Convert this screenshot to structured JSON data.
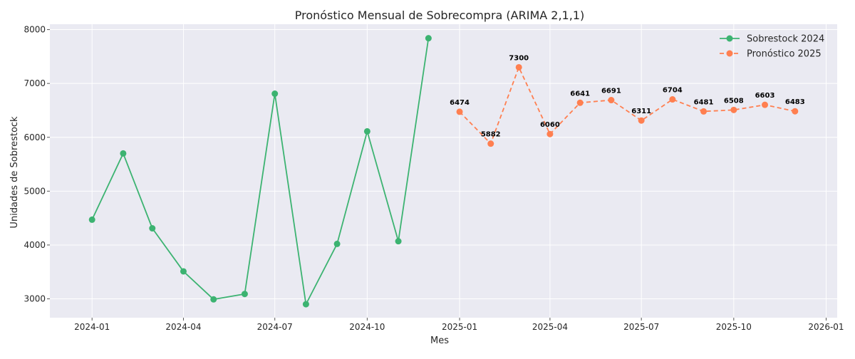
{
  "chart_data": {
    "type": "line",
    "title": "Pronóstico Mensual de Sobrecompra (ARIMA 2,1,1)",
    "xlabel": "Mes",
    "ylabel": "Unidades de Sobrestock",
    "ylim": [
      2650,
      8100
    ],
    "xlim": [
      "2023-11-20",
      "2026-01-12"
    ],
    "x_ticks": [
      "2024-01",
      "2024-04",
      "2024-07",
      "2024-10",
      "2025-01",
      "2025-04",
      "2025-07",
      "2025-10",
      "2026-01"
    ],
    "y_ticks": [
      3000,
      4000,
      5000,
      6000,
      7000,
      8000
    ],
    "grid": true,
    "legend_position": "top-right",
    "background": "#eaeaf2",
    "series": [
      {
        "name": "Sobrestock 2024",
        "color": "#3cb371",
        "line_style": "solid",
        "marker": "circle",
        "x": [
          "2024-01-01",
          "2024-02-01",
          "2024-03-01",
          "2024-04-01",
          "2024-05-01",
          "2024-06-01",
          "2024-07-01",
          "2024-08-01",
          "2024-09-01",
          "2024-10-01",
          "2024-11-01",
          "2024-12-01"
        ],
        "values": [
          4470,
          5700,
          4310,
          3510,
          2990,
          3090,
          6810,
          2900,
          4020,
          6110,
          4070,
          7840
        ]
      },
      {
        "name": "Pronóstico 2025",
        "color": "#ff7f50",
        "line_style": "dashed",
        "marker": "circle",
        "x": [
          "2025-01-01",
          "2025-02-01",
          "2025-03-01",
          "2025-04-01",
          "2025-05-01",
          "2025-06-01",
          "2025-07-01",
          "2025-08-01",
          "2025-09-01",
          "2025-10-01",
          "2025-11-01",
          "2025-12-01"
        ],
        "values": [
          6474,
          5882,
          7300,
          6060,
          6641,
          6691,
          6311,
          6704,
          6481,
          6508,
          6603,
          6483
        ],
        "data_labels": [
          "6474",
          "5882",
          "7300",
          "6060",
          "6641",
          "6691",
          "6311",
          "6704",
          "6481",
          "6508",
          "6603",
          "6483"
        ]
      }
    ]
  }
}
